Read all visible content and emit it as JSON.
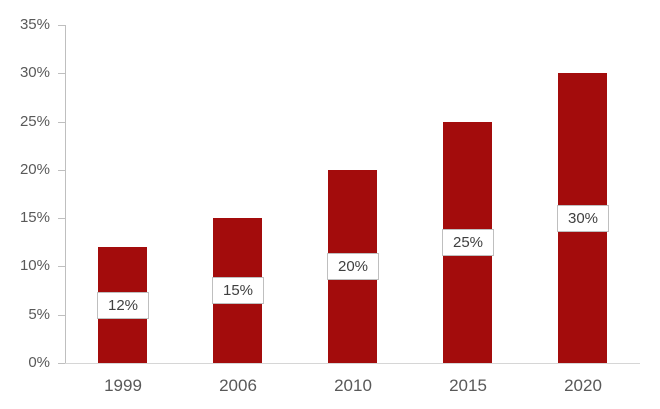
{
  "chart_data": {
    "type": "bar",
    "title": "",
    "categories": [
      "1999",
      "2006",
      "2010",
      "2015",
      "2020"
    ],
    "values": [
      12,
      15,
      20,
      25,
      30
    ],
    "data_labels": [
      "12%",
      "15%",
      "20%",
      "25%",
      "30%"
    ],
    "xlabel": "",
    "ylabel": "",
    "ylim": [
      0,
      35
    ],
    "ytick_step": 5,
    "ytick_labels": [
      "0%",
      "5%",
      "10%",
      "15%",
      "20%",
      "25%",
      "30%",
      "35%"
    ],
    "grid": false,
    "legend": "none",
    "data_label_position": "inside-center",
    "colors": {
      "bar_fill": "#A30C0C",
      "y_axis_line": "#BFBFBF",
      "x_axis_line": "#D6D6D6",
      "tick": "#BFBFBF",
      "axis_text": "#595959",
      "data_label_text": "#404040",
      "data_label_fill": "#FFFFFF",
      "data_label_border": "#BFBFBF",
      "background": "#FFFFFF"
    }
  }
}
